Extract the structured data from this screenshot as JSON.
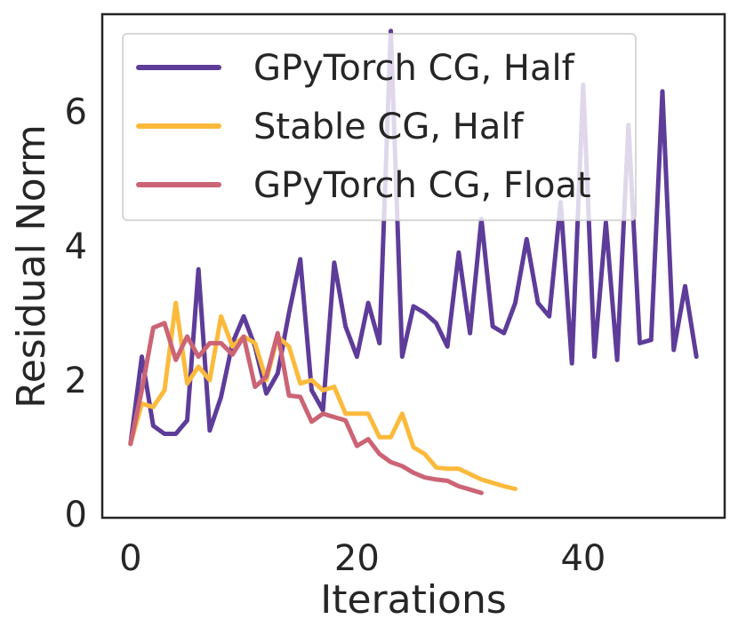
{
  "chart_data": {
    "type": "line",
    "title": "",
    "xlabel": "Iterations",
    "ylabel": "Residual Norm",
    "xlim": [
      -2.5,
      52.5
    ],
    "ylim": [
      -0.05,
      7.45
    ],
    "xticks": [
      0,
      20,
      40
    ],
    "yticks": [
      0,
      2,
      4,
      6
    ],
    "xtick_labels": [
      "0",
      "20",
      "40"
    ],
    "ytick_labels": [
      "0",
      "2",
      "4",
      "6"
    ],
    "grid": false,
    "legend_position": "top-left",
    "series": [
      {
        "name": "GPyTorch CG, Half",
        "color": "#5e3c99",
        "x": [
          0,
          1,
          2,
          3,
          4,
          5,
          6,
          7,
          8,
          9,
          10,
          11,
          12,
          13,
          14,
          15,
          16,
          17,
          18,
          19,
          20,
          21,
          22,
          23,
          24,
          25,
          26,
          27,
          28,
          29,
          30,
          31,
          32,
          33,
          34,
          35,
          36,
          37,
          38,
          39,
          40,
          41,
          42,
          43,
          44,
          45,
          46,
          47,
          48,
          49,
          50
        ],
        "values": [
          1.05,
          2.35,
          1.32,
          1.2,
          1.2,
          1.4,
          3.65,
          1.25,
          1.75,
          2.55,
          2.95,
          2.5,
          1.8,
          2.1,
          3.0,
          3.8,
          1.85,
          1.55,
          3.75,
          2.8,
          2.35,
          3.15,
          2.55,
          7.2,
          2.35,
          3.1,
          3.0,
          2.85,
          2.5,
          3.9,
          2.7,
          4.4,
          2.8,
          2.7,
          3.15,
          4.1,
          3.15,
          2.95,
          4.65,
          2.25,
          6.4,
          2.35,
          4.35,
          2.3,
          5.8,
          2.55,
          2.6,
          6.3,
          2.45,
          3.4,
          2.35
        ]
      },
      {
        "name": "Stable CG, Half",
        "color": "#fbba3c",
        "x": [
          0,
          1,
          2,
          3,
          4,
          5,
          6,
          7,
          8,
          9,
          10,
          11,
          12,
          13,
          14,
          15,
          16,
          17,
          18,
          19,
          20,
          21,
          22,
          23,
          24,
          25,
          26,
          27,
          28,
          29,
          30,
          31,
          32,
          33,
          34
        ],
        "values": [
          1.05,
          1.65,
          1.6,
          1.85,
          3.15,
          1.95,
          2.2,
          2.0,
          2.95,
          2.5,
          2.65,
          2.55,
          2.0,
          2.65,
          2.5,
          1.95,
          2.0,
          1.85,
          1.9,
          1.5,
          1.5,
          1.5,
          1.15,
          1.15,
          1.5,
          1.0,
          0.9,
          0.7,
          0.68,
          0.68,
          0.6,
          0.52,
          0.47,
          0.42,
          0.38
        ]
      },
      {
        "name": "GPyTorch CG, Float",
        "color": "#cb6475",
        "x": [
          0,
          1,
          2,
          3,
          4,
          5,
          6,
          7,
          8,
          9,
          10,
          11,
          12,
          13,
          14,
          15,
          16,
          17,
          18,
          19,
          20,
          21,
          22,
          23,
          24,
          25,
          26,
          27,
          28,
          29,
          30,
          31
        ],
        "values": [
          1.05,
          1.85,
          2.78,
          2.85,
          2.3,
          2.65,
          2.35,
          2.55,
          2.55,
          2.38,
          2.65,
          1.9,
          2.05,
          2.7,
          1.77,
          1.75,
          1.38,
          1.5,
          1.45,
          1.4,
          1.02,
          1.12,
          0.9,
          0.78,
          0.72,
          0.62,
          0.55,
          0.52,
          0.5,
          0.42,
          0.37,
          0.32
        ]
      }
    ]
  }
}
